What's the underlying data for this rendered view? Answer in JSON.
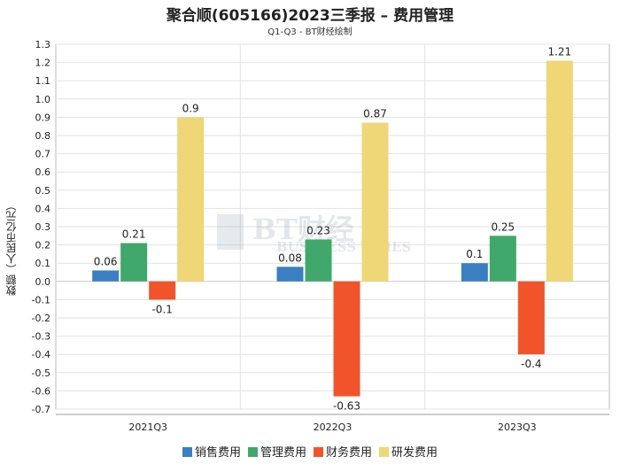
{
  "header": {
    "title": "聚合顺(605166)2023三季报 – 费用管理",
    "subtitle": "Q1-Q3 - BT财经绘制"
  },
  "watermark": {
    "main": "BT财经",
    "sub": "BUSINESS TIMES"
  },
  "chart_data": {
    "type": "bar",
    "title": "聚合顺(605166)2023三季报 – 费用管理",
    "subtitle": "Q1-Q3 - BT财经绘制",
    "xlabel": "",
    "ylabel": "数额（人民币亿元）",
    "ylim": [
      -0.7,
      1.3
    ],
    "yticks": [
      "1.3",
      "1.2",
      "1.1",
      "1.0",
      "0.9",
      "0.8",
      "0.7",
      "0.6",
      "0.5",
      "0.4",
      "0.3",
      "0.2",
      "0.1",
      "0.0",
      "-0.1",
      "-0.2",
      "-0.3",
      "-0.4",
      "-0.5",
      "-0.6",
      "-0.7"
    ],
    "grid": true,
    "legend_position": "bottom",
    "categories": [
      "2021Q3",
      "2022Q3",
      "2023Q3"
    ],
    "series": [
      {
        "name": "销售费用",
        "color": "#3a7fc1",
        "values": [
          0.06,
          0.08,
          0.1
        ],
        "labels": [
          "0.06",
          "0.08",
          "0.1"
        ]
      },
      {
        "name": "管理费用",
        "color": "#40a86b",
        "values": [
          0.21,
          0.23,
          0.25
        ],
        "labels": [
          "0.21",
          "0.23",
          "0.25"
        ]
      },
      {
        "name": "财务费用",
        "color": "#f1542a",
        "values": [
          -0.1,
          -0.63,
          -0.4
        ],
        "labels": [
          "-0.1",
          "-0.63",
          "-0.4"
        ]
      },
      {
        "name": "研发费用",
        "color": "#efd676",
        "values": [
          0.9,
          0.87,
          1.21
        ],
        "labels": [
          "0.9",
          "0.87",
          "1.21"
        ]
      }
    ]
  }
}
